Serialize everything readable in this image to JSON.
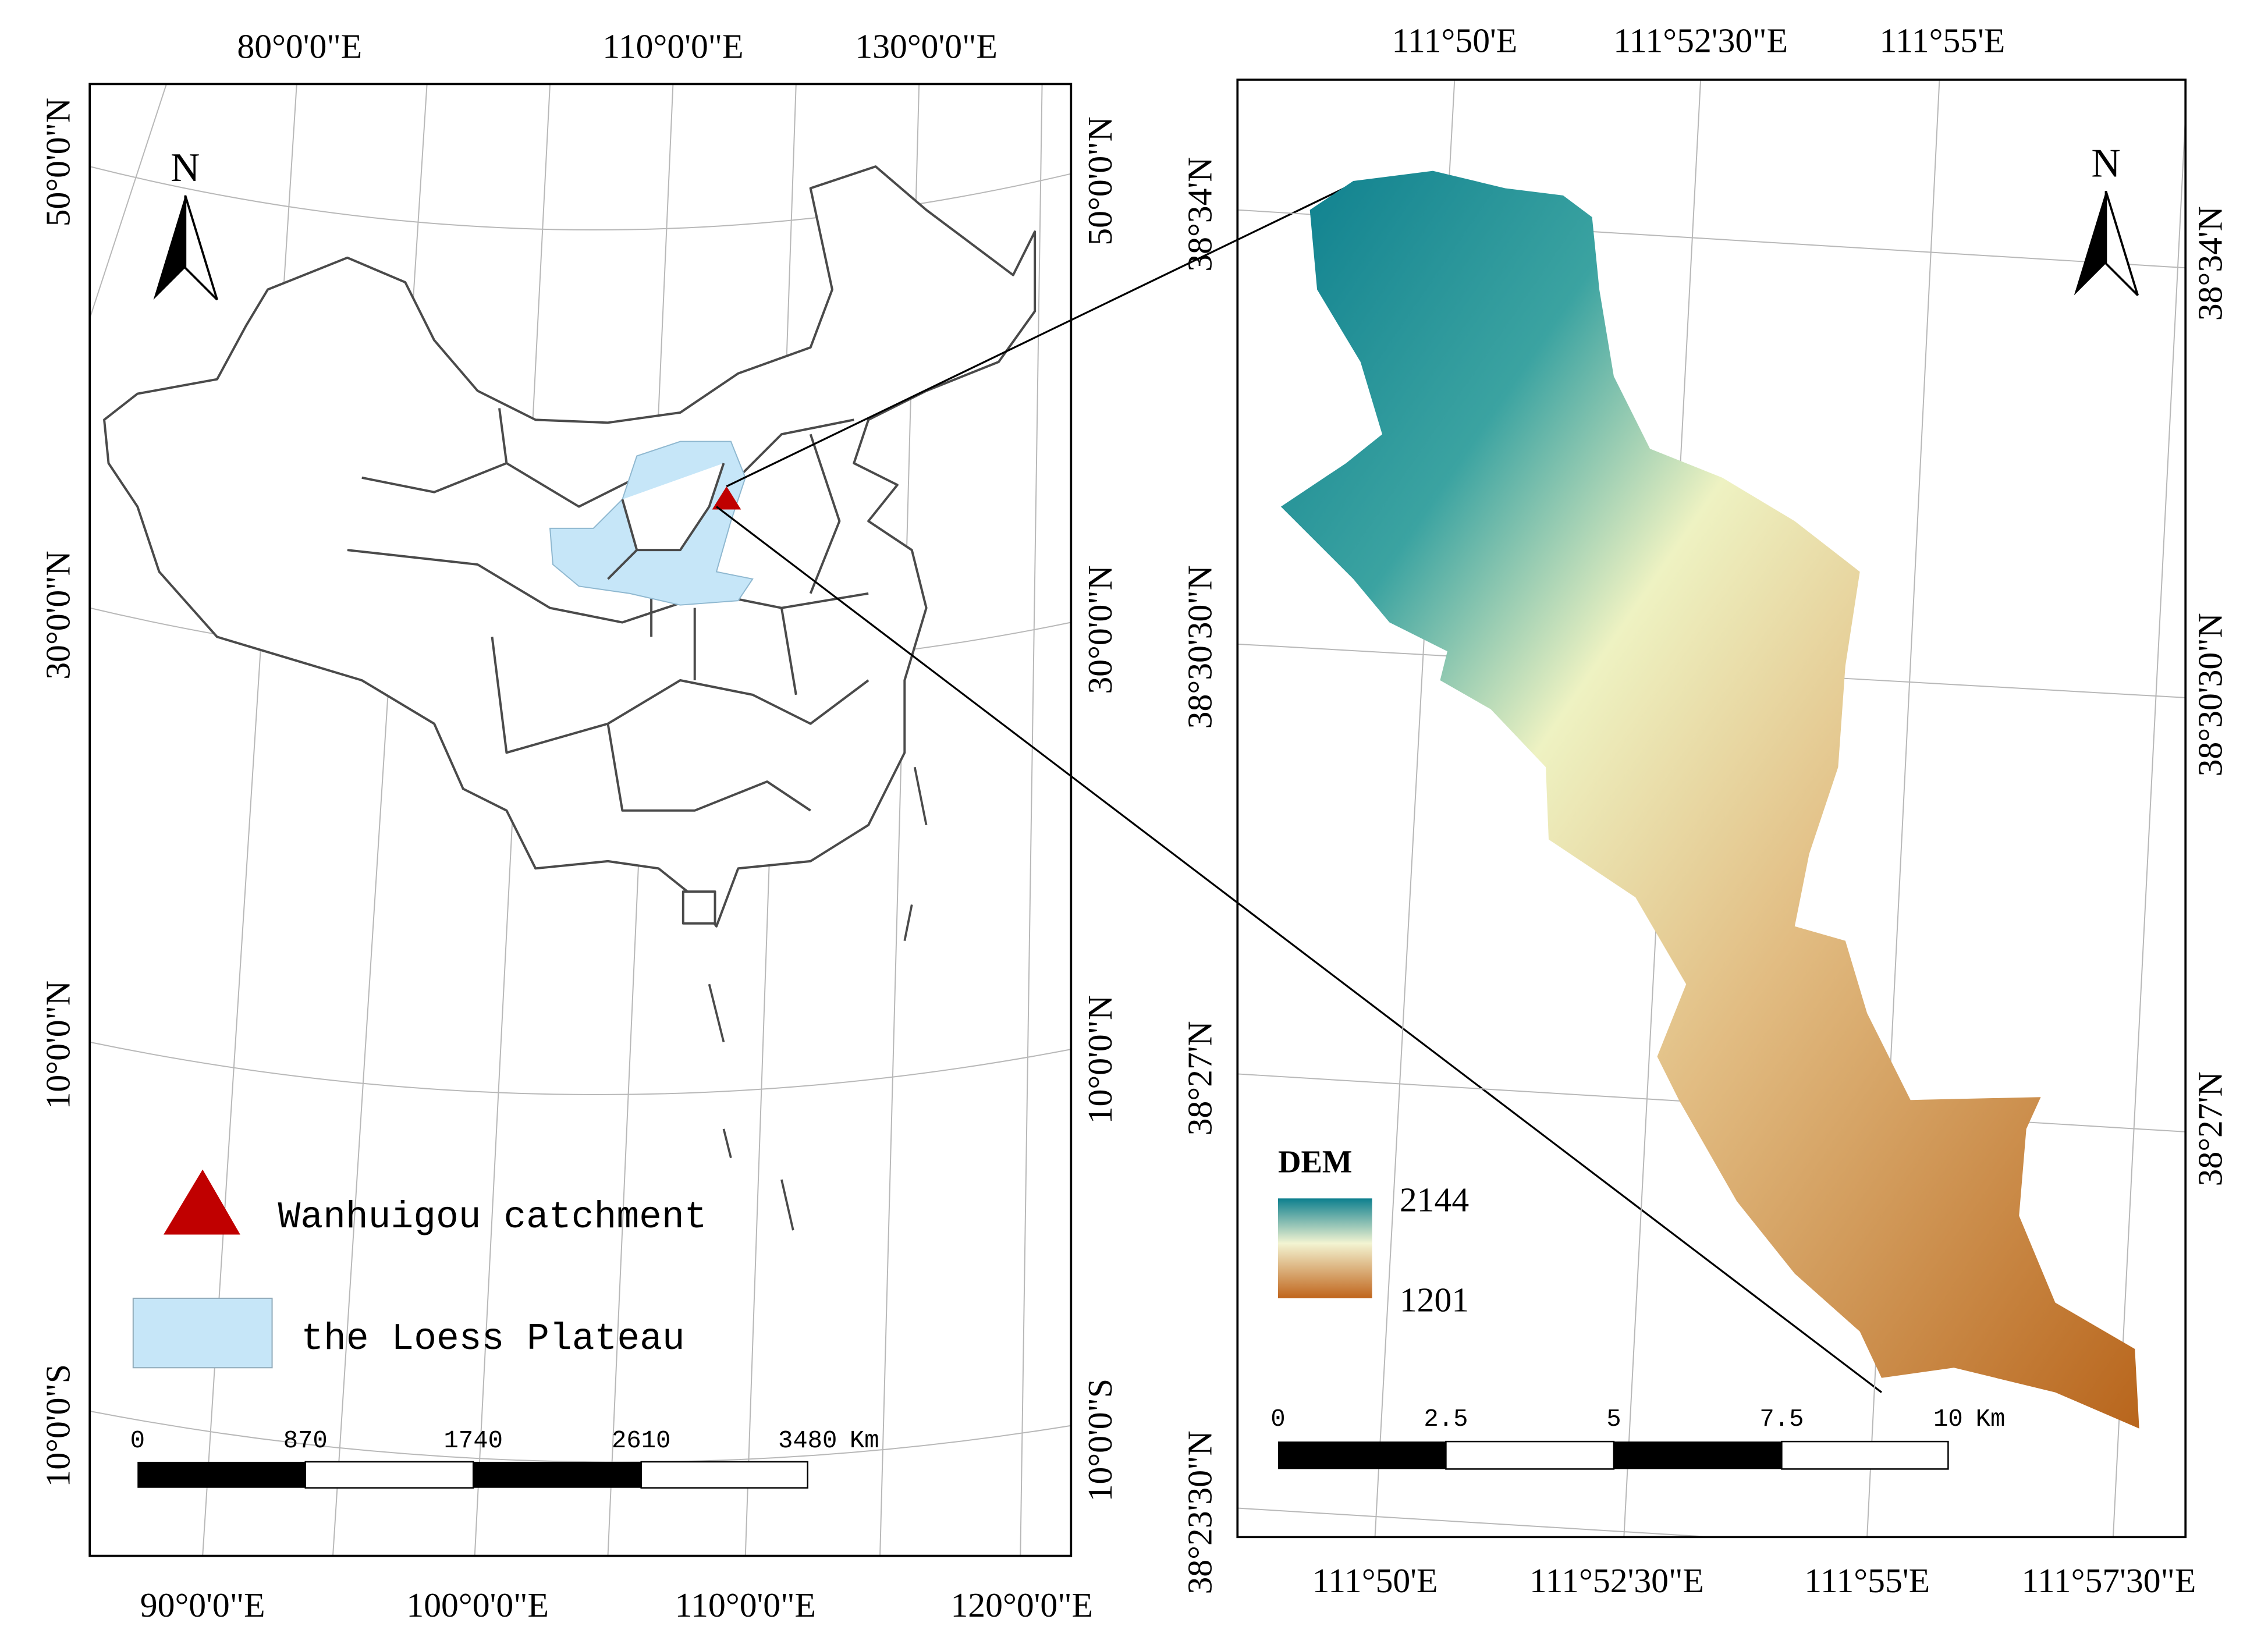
{
  "left_map": {
    "top_labels": [
      "80°0'0\"E",
      "110°0'0\"E",
      "130°0'0\"E"
    ],
    "bottom_labels": [
      "90°0'0\"E",
      "100°0'0\"E",
      "110°0'0\"E",
      "120°0'0\"E"
    ],
    "left_labels": [
      "50°0'0\"N",
      "30°0'0\"N",
      "10°0'0\"N",
      "10°0'0\"S"
    ],
    "right_labels": [
      "50°0'0\"N",
      "30°0'0\"N",
      "10°0'0\"N",
      "10°0'0\"S"
    ],
    "north": "N",
    "legend": [
      "Wanhuigou catchment",
      "the Loess Plateau"
    ],
    "scale": [
      "0",
      "870",
      "1740",
      "2610",
      "3480"
    ],
    "scale_unit": "Km"
  },
  "right_map": {
    "top_labels": [
      "111°50'E",
      "111°52'30\"E",
      "111°55'E"
    ],
    "bottom_labels": [
      "111°50'E",
      "111°52'30\"E",
      "111°55'E",
      "111°57'30\"E"
    ],
    "left_labels": [
      "38°34'N",
      "38°30'30\"N",
      "38°27'N",
      "38°23'30\"N"
    ],
    "right_labels": [
      "38°34'N",
      "38°30'30\"N",
      "38°27'N"
    ],
    "north": "N",
    "legend_title": "DEM",
    "legend_max": "2144",
    "legend_min": "1201",
    "scale": [
      "0",
      "2.5",
      "5",
      "7.5",
      "10"
    ],
    "scale_unit": "Km"
  }
}
